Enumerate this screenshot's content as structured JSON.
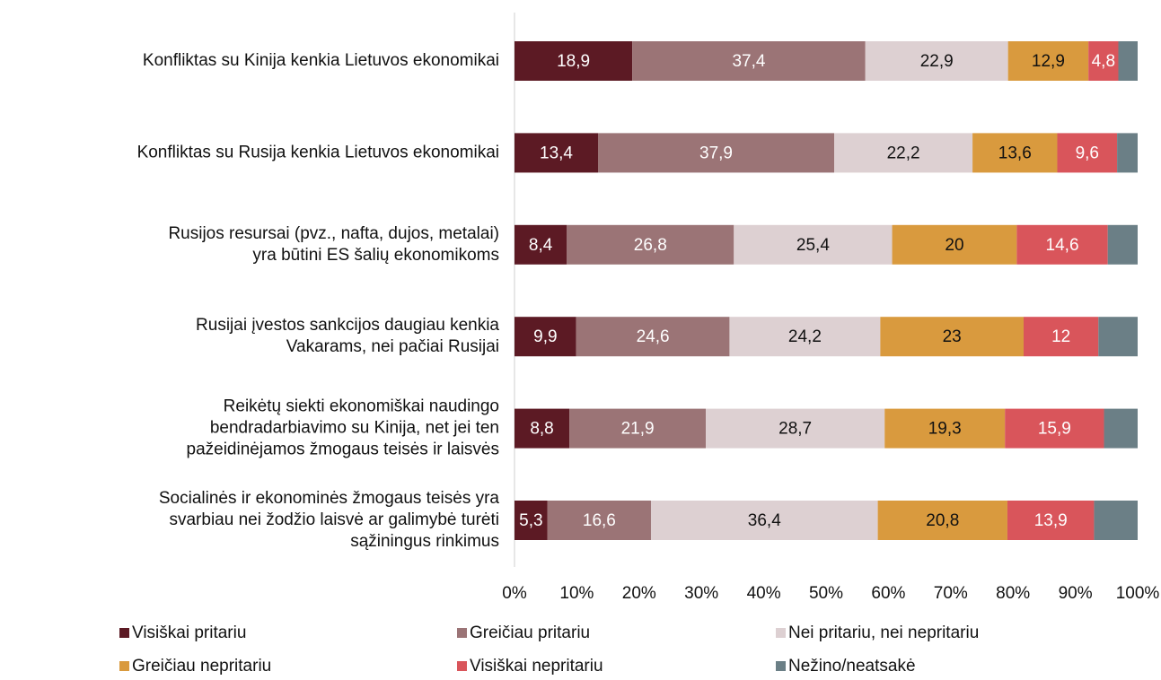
{
  "chart_data": {
    "type": "stacked-barh",
    "categories": [
      [
        "Konfliktas su Kinija kenkia Lietuvos ekonomikai"
      ],
      [
        "Konfliktas su Rusija kenkia Lietuvos ekonomikai"
      ],
      [
        "Rusijos resursai (pvz., nafta, dujos, metalai)",
        "yra būtini ES šalių ekonomikoms"
      ],
      [
        "Rusijai įvestos sankcijos daugiau kenkia",
        "Vakarams, nei pačiai Rusijai"
      ],
      [
        "Reikėtų siekti ekonomiškai naudingo",
        "bendradarbiavimo su Kinija, net jei ten",
        "pažeidinėjamos žmogaus teisės ir laisvės"
      ],
      [
        "Socialinės ir ekonominės žmogaus teisės yra",
        "svarbiau nei žodžio laisvė ar galimybė turėti",
        "sąžiningus rinkimus"
      ]
    ],
    "series": [
      {
        "name": "Visiškai pritariu",
        "color": "#5c1a24",
        "label_color": "#ffffff",
        "values": [
          18.9,
          13.4,
          8.4,
          9.9,
          8.8,
          5.3
        ],
        "value_labels": [
          "18,9",
          "13,4",
          "8,4",
          "9,9",
          "8,8",
          "5,3"
        ]
      },
      {
        "name": "Greičiau pritariu",
        "color": "#9b7476",
        "label_color": "#ffffff",
        "values": [
          37.4,
          37.9,
          26.8,
          24.6,
          21.9,
          16.6
        ],
        "value_labels": [
          "37,4",
          "37,9",
          "26,8",
          "24,6",
          "21,9",
          "16,6"
        ]
      },
      {
        "name": "Nei pritariu, nei nepritariu",
        "color": "#ddd0d2",
        "label_color": "#111111",
        "values": [
          22.9,
          22.2,
          25.4,
          24.2,
          28.7,
          36.4
        ],
        "value_labels": [
          "22,9",
          "22,2",
          "25,4",
          "24,2",
          "28,7",
          "36,4"
        ]
      },
      {
        "name": "Greičiau nepritariu",
        "color": "#d99a3e",
        "label_color": "#111111",
        "values": [
          12.9,
          13.6,
          20,
          23,
          19.3,
          20.8
        ],
        "value_labels": [
          "12,9",
          "13,6",
          "20",
          "23",
          "19,3",
          "20,8"
        ]
      },
      {
        "name": "Visiškai nepritariu",
        "color": "#d9555b",
        "label_color": "#ffffff",
        "values": [
          4.8,
          9.6,
          14.6,
          12,
          15.9,
          13.9
        ],
        "value_labels": [
          "4,8",
          "9,6",
          "14,6",
          "12",
          "15,9",
          "13,9"
        ]
      },
      {
        "name": "Nežino/neatsakė",
        "color": "#6b7f86",
        "values": [
          3.1,
          3.3,
          4.8,
          6.3,
          5.4,
          7.0
        ]
      }
    ],
    "xlim": [
      0,
      100
    ],
    "xticks": [
      {
        "value": 0,
        "label": "0%"
      },
      {
        "value": 10,
        "label": "10%"
      },
      {
        "value": 20,
        "label": "20%"
      },
      {
        "value": 30,
        "label": "30%"
      },
      {
        "value": 40,
        "label": "40%"
      },
      {
        "value": 50,
        "label": "50%"
      },
      {
        "value": 60,
        "label": "60%"
      },
      {
        "value": 70,
        "label": "70%"
      },
      {
        "value": 80,
        "label": "80%"
      },
      {
        "value": 90,
        "label": "90%"
      },
      {
        "value": 100,
        "label": "100%"
      }
    ],
    "legend": "bottom"
  }
}
